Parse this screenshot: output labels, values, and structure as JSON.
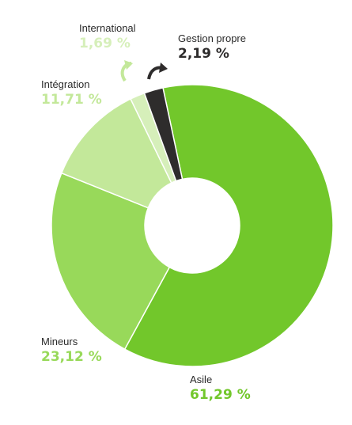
{
  "chart_data": {
    "type": "pie",
    "donut": true,
    "categories": [
      "Asile",
      "Mineurs",
      "Intégration",
      "International",
      "Gestion propre"
    ],
    "values": [
      61.29,
      23.12,
      11.71,
      1.69,
      2.19
    ],
    "value_labels": [
      "61,29 %",
      "23,12 %",
      "11,71 %",
      "1,69 %",
      "2,19 %"
    ],
    "colors": [
      "#72c72b",
      "#98d95a",
      "#c3e89a",
      "#d6efba",
      "#2e2c2c"
    ]
  }
}
